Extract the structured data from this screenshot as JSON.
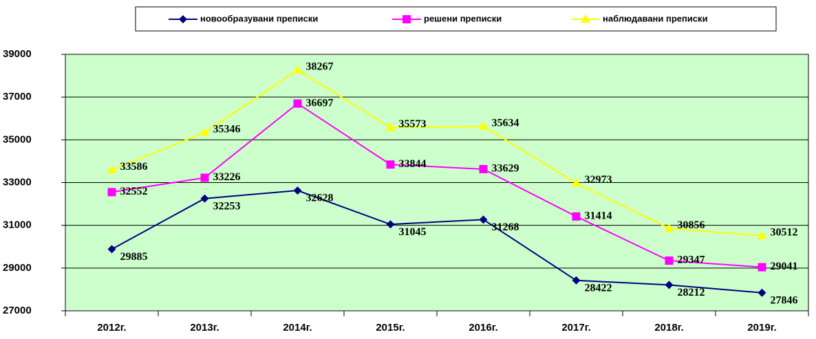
{
  "chart_data": {
    "type": "line",
    "categories": [
      "2012г.",
      "2013г.",
      "2014г.",
      "2015г.",
      "2016г.",
      "2017г.",
      "2018г.",
      "2019г."
    ],
    "series": [
      {
        "name": "новообразувани преписки",
        "color": "#000080",
        "marker": "diamond",
        "values": [
          29885,
          32253,
          32628,
          31045,
          31268,
          28422,
          28212,
          27846
        ]
      },
      {
        "name": "решени преписки",
        "color": "#ff00ff",
        "marker": "square",
        "values": [
          32552,
          33226,
          36697,
          33844,
          33629,
          31414,
          29347,
          29041
        ]
      },
      {
        "name": "наблюдавани преписки",
        "color": "#ffff00",
        "marker": "triangle",
        "values": [
          33586,
          35346,
          38267,
          35573,
          35634,
          32973,
          30856,
          30512
        ]
      }
    ],
    "ylim": [
      27000,
      39000
    ],
    "yticks": [
      27000,
      29000,
      31000,
      33000,
      35000,
      37000,
      39000
    ],
    "grid": true,
    "legend": "top",
    "plot_background": "#ccffcc"
  }
}
